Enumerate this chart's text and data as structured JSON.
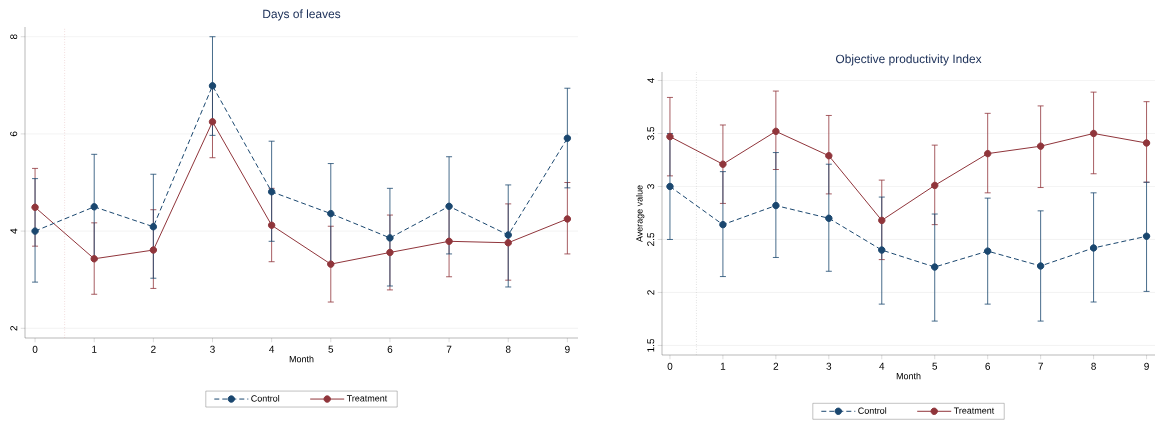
{
  "chart_data": [
    {
      "type": "line",
      "title": "Days of leaves",
      "xlabel": "Month",
      "x": [
        0,
        1,
        2,
        3,
        4,
        5,
        6,
        7,
        8,
        9
      ],
      "xlim": [
        -0.17,
        9.18
      ],
      "xticks": [
        0,
        1,
        2,
        3,
        4,
        5,
        6,
        7,
        8,
        9
      ],
      "ylim": [
        1.8,
        8.2
      ],
      "yticks": [
        2,
        4,
        6,
        8
      ],
      "grid": "y",
      "legend": "bottom",
      "marker": "circle",
      "ref_lines": [
        {
          "axis": "x",
          "value": 0.5,
          "color": "#d9a3a3",
          "line_style": "dotted"
        }
      ],
      "series": [
        {
          "name": "Control",
          "color": "#1a476f",
          "line_style": "dashed",
          "values": [
            4.0,
            4.5,
            4.09,
            6.99,
            4.81,
            4.36,
            3.86,
            4.51,
            3.92,
            5.91
          ],
          "errors": [
            [
              2.95,
              5.08
            ],
            [
              3.42,
              5.58
            ],
            [
              3.03,
              5.17
            ],
            [
              5.97,
              8.0
            ],
            [
              3.79,
              5.85
            ],
            [
              3.33,
              5.39
            ],
            [
              2.87,
              4.88
            ],
            [
              3.53,
              5.53
            ],
            [
              2.85,
              4.95
            ],
            [
              4.89,
              6.94
            ]
          ]
        },
        {
          "name": "Treatment",
          "color": "#90353b",
          "line_style": "solid",
          "values": [
            4.49,
            3.43,
            3.61,
            6.25,
            4.12,
            3.32,
            3.56,
            3.79,
            3.76,
            4.25
          ],
          "errors": [
            [
              3.69,
              5.29
            ],
            [
              2.7,
              4.17
            ],
            [
              2.82,
              4.44
            ],
            [
              5.51,
              6.99
            ],
            [
              3.37,
              4.88
            ],
            [
              2.54,
              4.1
            ],
            [
              2.79,
              4.33
            ],
            [
              3.06,
              4.53
            ],
            [
              2.99,
              4.56
            ],
            [
              3.53,
              5.0
            ]
          ]
        }
      ]
    },
    {
      "type": "line",
      "title": "Objective productivity Index",
      "xlabel": "Month",
      "ylabel": "Average value",
      "x": [
        0,
        1,
        2,
        3,
        4,
        5,
        6,
        7,
        8,
        9
      ],
      "xlim": [
        -0.15,
        9.16
      ],
      "xticks": [
        0,
        1,
        2,
        3,
        4,
        5,
        6,
        7,
        8,
        9
      ],
      "ylim": [
        1.41,
        4.08
      ],
      "yticks": [
        1.5,
        2,
        2.5,
        3,
        3.5,
        4
      ],
      "grid": "y",
      "legend": "bottom",
      "marker": "circle",
      "ref_lines": [
        {
          "axis": "x",
          "value": 0.5,
          "color": "#b0b0b0",
          "line_style": "dotted"
        }
      ],
      "series": [
        {
          "name": "Control",
          "color": "#1a476f",
          "line_style": "dashed",
          "values": [
            3.0,
            2.64,
            2.82,
            2.7,
            2.4,
            2.24,
            2.39,
            2.25,
            2.42,
            2.53
          ],
          "errors": [
            [
              2.5,
              3.5
            ],
            [
              2.15,
              3.14
            ],
            [
              2.33,
              3.32
            ],
            [
              2.2,
              3.21
            ],
            [
              1.89,
              2.9
            ],
            [
              1.73,
              2.74
            ],
            [
              1.89,
              2.89
            ],
            [
              1.73,
              2.77
            ],
            [
              1.91,
              2.94
            ],
            [
              2.01,
              3.04
            ]
          ]
        },
        {
          "name": "Treatment",
          "color": "#90353b",
          "line_style": "solid",
          "values": [
            3.47,
            3.21,
            3.52,
            3.29,
            2.68,
            3.01,
            3.31,
            3.38,
            3.5,
            3.41
          ],
          "errors": [
            [
              3.1,
              3.84
            ],
            [
              2.84,
              3.58
            ],
            [
              3.16,
              3.9
            ],
            [
              2.93,
              3.67
            ],
            [
              2.31,
              3.06
            ],
            [
              2.64,
              3.39
            ],
            [
              2.94,
              3.69
            ],
            [
              2.99,
              3.76
            ],
            [
              3.12,
              3.89
            ],
            [
              3.04,
              3.8
            ]
          ]
        }
      ]
    }
  ]
}
